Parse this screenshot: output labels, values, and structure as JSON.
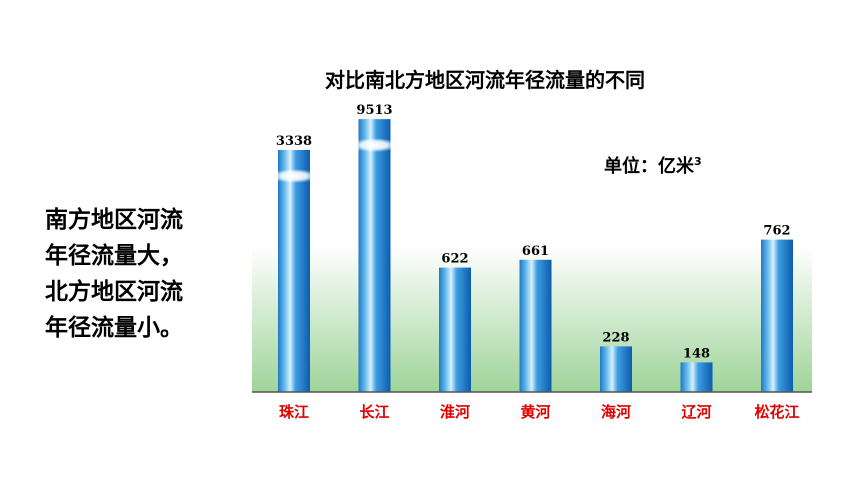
{
  "slide": {
    "title": "对比南北方地区河流年径流量的不同",
    "side_text": [
      "南方地区河流",
      "年径流量大，",
      "北方地区河流",
      "年径流量小。"
    ],
    "unit_text": "单位：亿米",
    "unit_sup": "3"
  },
  "chart_data": {
    "type": "bar",
    "title": "对比南北方地区河流年径流量的不同",
    "unit": "亿米3",
    "categories": [
      "珠江",
      "长江",
      "淮河",
      "黄河",
      "海河",
      "辽河",
      "松花江"
    ],
    "values": [
      3338,
      9513,
      622,
      661,
      228,
      148,
      762
    ],
    "value_labels": [
      "3338",
      "9513",
      "622",
      "661",
      "228",
      "148",
      "762"
    ],
    "axis_broken": true,
    "grid": false,
    "legend": "none",
    "colors": {
      "bar": "#1e78c8",
      "bar_highlight": "#d8f0ff",
      "category_label": "#e00000",
      "value_label": "#000000",
      "plot_background_bottom": "#9fd49a",
      "axis": "#555555"
    }
  }
}
